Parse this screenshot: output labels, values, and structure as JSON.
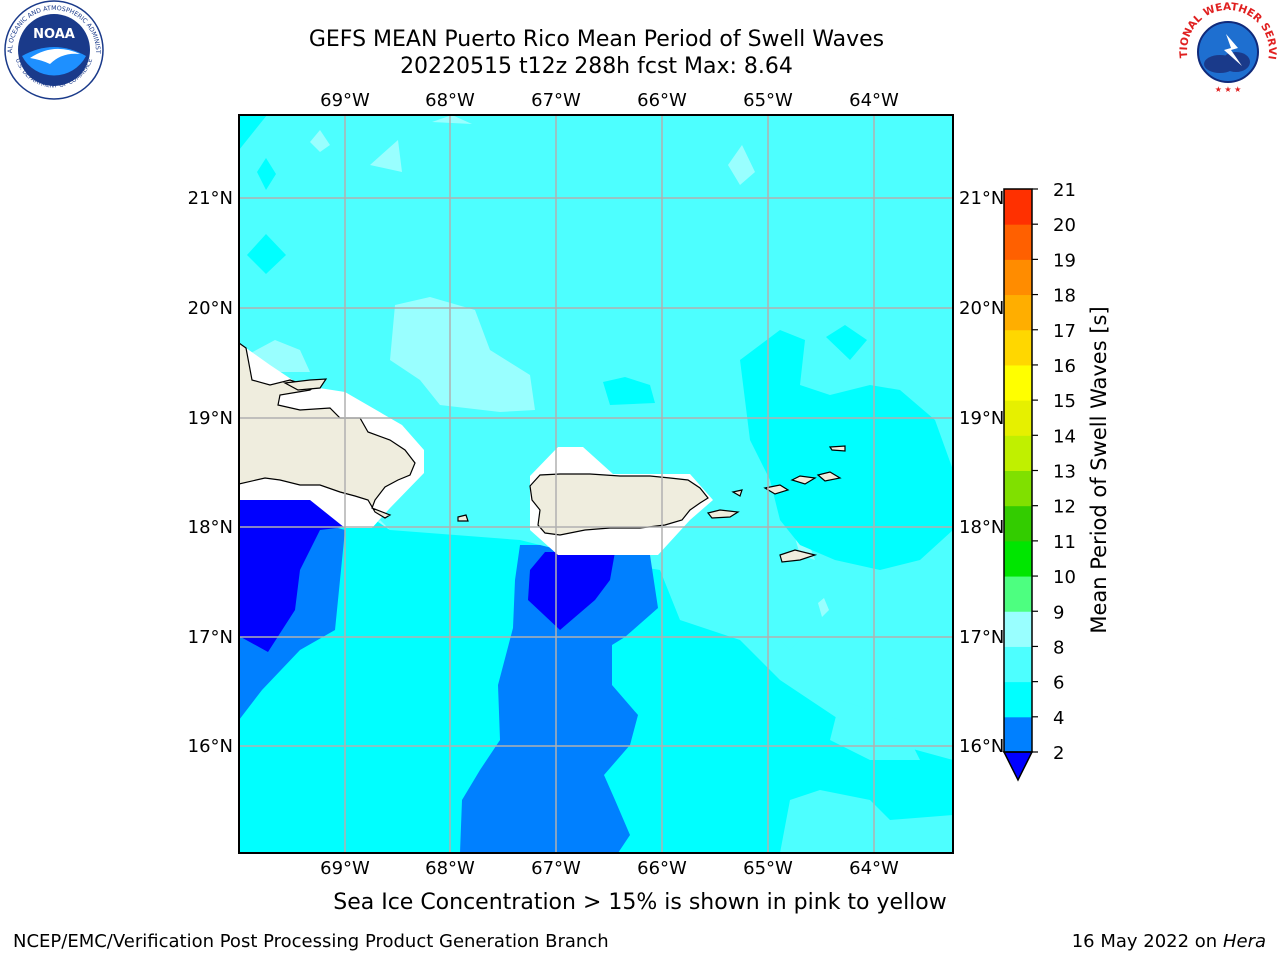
{
  "title_line1": "GEFS MEAN Puerto Rico Mean Period of Swell Waves",
  "title_line2": "20220515 t12z 288h fcst   Max: 8.64",
  "logos": {
    "left": "noaa-logo",
    "right": "nws-logo",
    "left_ring_text": "NATIONAL OCEANIC AND ATMOSPHERIC ADMINISTRATION",
    "left_ring_text_bottom": "U.S. DEPARTMENT OF COMMERCE",
    "left_center_text": "NOAA",
    "right_ring_text": "NATIONAL WEATHER SERVICE"
  },
  "map": {
    "lon_labels": [
      "69°W",
      "68°W",
      "67°W",
      "66°W",
      "65°W",
      "64°W"
    ],
    "lat_labels": [
      "21°N",
      "20°N",
      "19°N",
      "18°N",
      "17°N",
      "16°N"
    ],
    "lon_range": [
      -70,
      -63.25
    ],
    "lat_range": [
      15,
      21.75
    ],
    "background_color": "#4dffff",
    "land_color": "#efedde",
    "colors": {
      "band_2_4": "#0000ff",
      "band_4_6": "#0080ff",
      "band_6_8": "#00ffff",
      "band_8_9": "#99ffff"
    }
  },
  "colorbar": {
    "label": "Mean Period of Swell Waves [s]",
    "ticks": [
      "2",
      "4",
      "6",
      "8",
      "9",
      "10",
      "11",
      "12",
      "13",
      "14",
      "15",
      "16",
      "17",
      "18",
      "19",
      "20",
      "21"
    ],
    "colors": [
      "#0080ff",
      "#00ffff",
      "#4dffff",
      "#99ffff",
      "#4dff80",
      "#00e600",
      "#33cc00",
      "#80e000",
      "#c0f000",
      "#e6f000",
      "#ffff00",
      "#ffd700",
      "#ffae00",
      "#ff8c00",
      "#ff6000",
      "#ff3000",
      "#ff0000"
    ],
    "extend_color": "#0000ff"
  },
  "note": "Sea Ice Concentration > 15% is shown in pink to yellow",
  "footer_left": "NCEP/EMC/Verification Post Processing Product Generation Branch",
  "footer_date": "16 May 2022 on",
  "footer_machine": "Hera"
}
